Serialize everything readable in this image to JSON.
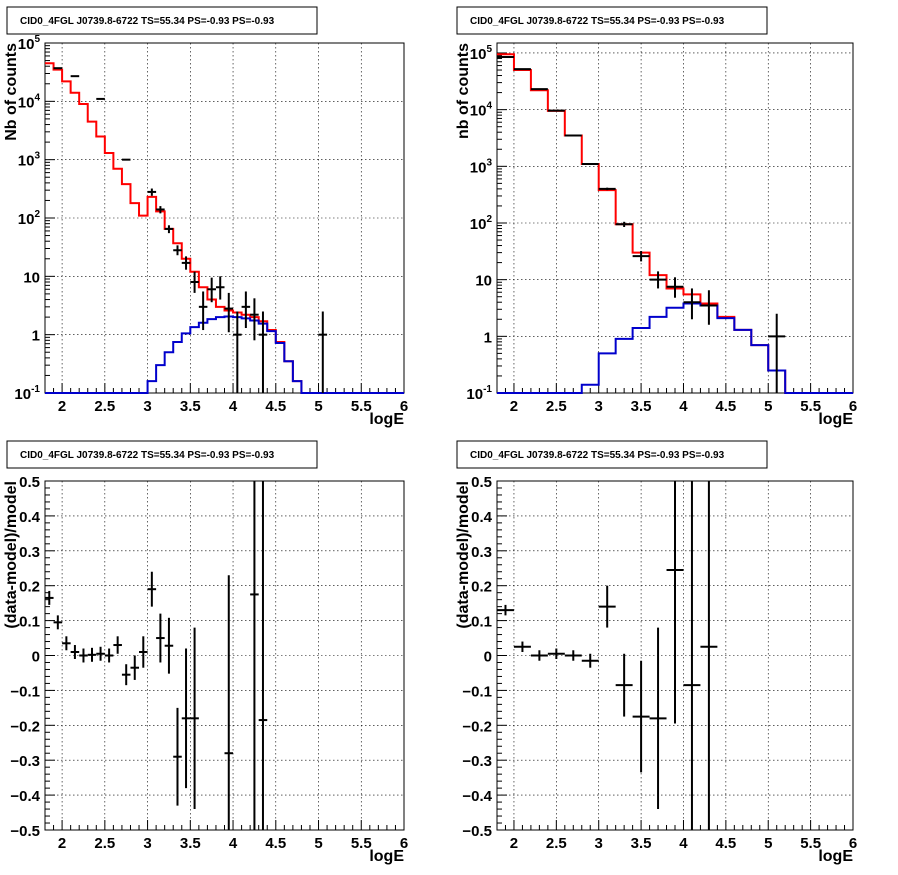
{
  "chart_data": [
    {
      "type": "line",
      "panel": "top-left",
      "title": "CID0_4FGL J0739.8-6722 TS=55.34 PS=-0.93 PS=-0.93",
      "xlabel": "logE",
      "ylabel": "Nb of counts",
      "xlim": [
        1.8,
        6.0
      ],
      "ylim": [
        0.1,
        100000
      ],
      "yscale": "log",
      "grid": true,
      "x_ticks": [
        "2",
        "2.5",
        "3",
        "3.5",
        "4",
        "4.5",
        "5",
        "5.5",
        "6"
      ],
      "y_ticks": [
        {
          "value": 0.1,
          "base": "10",
          "exp": "-1"
        },
        {
          "value": 1,
          "label": "1"
        },
        {
          "value": 10,
          "label": "10"
        },
        {
          "value": 100,
          "base": "10",
          "exp": "2"
        },
        {
          "value": 1000,
          "base": "10",
          "exp": "3"
        },
        {
          "value": 10000,
          "base": "10",
          "exp": "4"
        },
        {
          "value": 100000,
          "base": "10",
          "exp": "5"
        }
      ],
      "bin_edges": [
        1.8,
        1.9,
        2.0,
        2.1,
        2.2,
        2.3,
        2.4,
        2.5,
        2.6,
        2.7,
        2.8,
        2.9,
        3.0,
        3.1,
        3.2,
        3.3,
        3.4,
        3.5,
        3.6,
        3.7,
        3.8,
        3.9,
        4.0,
        4.1,
        4.2,
        4.3,
        4.4,
        4.5,
        4.6,
        4.7,
        4.8,
        4.9,
        5.0,
        5.1,
        5.2,
        5.3,
        5.4,
        5.5,
        5.6,
        5.7,
        5.8,
        5.9,
        6.0
      ],
      "series": [
        {
          "kind": "histogram",
          "color": "#ff0000",
          "values": [
            45000,
            35000,
            22000,
            14000,
            9000,
            4500,
            2500,
            1300,
            700,
            380,
            180,
            110,
            230,
            130,
            65,
            37,
            20,
            12,
            6.5,
            4.0,
            3.0,
            2.6,
            2.4,
            2.2,
            2.0,
            1.7,
            1.2,
            0.75,
            0.35,
            0.16,
            0.1,
            0.1,
            0.1,
            0.1,
            0.1,
            0.1,
            0.1,
            0.1,
            0.1,
            0.1,
            0.1,
            0.1
          ]
        },
        {
          "kind": "histogram",
          "color": "#0000cc",
          "values": [
            0.1,
            0.1,
            0.1,
            0.1,
            0.1,
            0.1,
            0.1,
            0.1,
            0.1,
            0.1,
            0.1,
            0.1,
            0.16,
            0.3,
            0.5,
            0.75,
            1.05,
            1.35,
            1.6,
            1.85,
            2.0,
            2.05,
            2.0,
            1.9,
            1.75,
            1.55,
            1.15,
            0.72,
            0.35,
            0.16,
            0.1,
            0.1,
            0.1,
            0.1,
            0.1,
            0.1,
            0.1,
            0.1,
            0.1,
            0.1,
            0.1,
            0.1
          ]
        },
        {
          "kind": "points",
          "color": "#000000",
          "x": [
            1.95,
            2.15,
            2.45,
            2.75,
            3.05,
            3.15,
            3.25,
            3.35,
            3.45,
            3.55,
            3.65,
            3.75,
            3.85,
            3.95,
            4.05,
            4.15,
            4.25,
            4.35,
            5.05
          ],
          "y": [
            37000,
            27000,
            11000,
            1000,
            280,
            140,
            65,
            28,
            17,
            8,
            3,
            6,
            6.5,
            2.8,
            1,
            3,
            2.2,
            1,
            1
          ],
          "yerr_low": [
            0,
            0,
            0,
            0,
            40,
            20,
            10,
            5,
            4,
            2.8,
            1.8,
            2.4,
            2.5,
            1.7,
            0.9,
            1.7,
            1.4,
            0.9,
            0.9
          ],
          "yerr_high": [
            0,
            0,
            0,
            0,
            40,
            20,
            10,
            6,
            5,
            4,
            2.5,
            3.5,
            3.5,
            2.4,
            1.5,
            2.5,
            2,
            1.5,
            1.5
          ]
        }
      ]
    },
    {
      "type": "line",
      "panel": "top-right",
      "title": "CID0_4FGL J0739.8-6722 TS=55.34 PS=-0.93 PS=-0.93",
      "xlabel": "logE",
      "ylabel": "nb of counts",
      "xlim": [
        1.8,
        6.0
      ],
      "ylim": [
        0.1,
        150000
      ],
      "yscale": "log",
      "grid": true,
      "x_ticks": [
        "2",
        "2.5",
        "3",
        "3.5",
        "4",
        "4.5",
        "5",
        "5.5",
        "6"
      ],
      "y_ticks": [
        {
          "value": 0.1,
          "base": "10",
          "exp": "-1"
        },
        {
          "value": 1,
          "label": "1"
        },
        {
          "value": 10,
          "label": "10"
        },
        {
          "value": 100,
          "base": "10",
          "exp": "2"
        },
        {
          "value": 1000,
          "base": "10",
          "exp": "3"
        },
        {
          "value": 10000,
          "base": "10",
          "exp": "4"
        },
        {
          "value": 100000,
          "base": "10",
          "exp": "5"
        }
      ],
      "bin_edges": [
        1.8,
        2.0,
        2.2,
        2.4,
        2.6,
        2.8,
        3.0,
        3.2,
        3.4,
        3.6,
        3.8,
        4.0,
        4.2,
        4.4,
        4.6,
        4.8,
        5.0,
        5.2,
        5.4,
        5.6,
        5.8,
        6.0
      ],
      "series": [
        {
          "kind": "histogram",
          "color": "#ff0000",
          "values": [
            95000,
            50000,
            22000,
            9500,
            3500,
            1100,
            380,
            95,
            30,
            12,
            7,
            5.5,
            3.8,
            2.2,
            1.3,
            0.7,
            0.25,
            0.1,
            0.1,
            0.1,
            0.1
          ]
        },
        {
          "kind": "histogram",
          "color": "#0000cc",
          "values": [
            0.1,
            0.1,
            0.1,
            0.1,
            0.1,
            0.14,
            0.5,
            0.9,
            1.4,
            2.2,
            3.2,
            3.8,
            3.5,
            2.1,
            1.3,
            0.7,
            0.25,
            0.1,
            0.1,
            0.1,
            0.1
          ]
        },
        {
          "kind": "points",
          "color": "#000000",
          "x": [
            1.9,
            2.1,
            2.3,
            2.5,
            2.7,
            2.9,
            3.1,
            3.3,
            3.5,
            3.7,
            3.9,
            4.1,
            4.3,
            5.1
          ],
          "y": [
            85000,
            52000,
            23000,
            9600,
            3500,
            1100,
            400,
            95,
            26,
            10,
            7.5,
            4,
            3.5,
            1
          ],
          "yerr_low": [
            0,
            0,
            0,
            0,
            0,
            30,
            20,
            10,
            5,
            3,
            2.7,
            2,
            1.9,
            0.9
          ],
          "yerr_high": [
            0,
            0,
            0,
            0,
            0,
            30,
            20,
            10,
            6,
            4,
            3.5,
            3,
            3,
            1.5
          ]
        }
      ]
    },
    {
      "type": "scatter",
      "panel": "bottom-left",
      "title": "CID0_4FGL J0739.8-6722 TS=55.34 PS=-0.93 PS=-0.93",
      "xlabel": "logE",
      "ylabel": "(data-model)/model",
      "xlim": [
        1.8,
        6.0
      ],
      "ylim": [
        -0.5,
        0.5
      ],
      "grid": true,
      "x_ticks": [
        "2",
        "2.5",
        "3",
        "3.5",
        "4",
        "4.5",
        "5",
        "5.5",
        "6"
      ],
      "y_ticks": [
        "−0.5",
        "−0.4",
        "−0.3",
        "−0.2",
        "−0.1",
        "0",
        "0.1",
        "0.2",
        "0.3",
        "0.4",
        "0.5"
      ],
      "bin_width": 0.1,
      "series": [
        {
          "kind": "points",
          "color": "#000000",
          "x": [
            1.85,
            1.95,
            2.05,
            2.15,
            2.25,
            2.35,
            2.45,
            2.55,
            2.65,
            2.75,
            2.85,
            2.95,
            3.05,
            3.15,
            3.25,
            3.35,
            3.45,
            3.55,
            3.95,
            4.25,
            4.35
          ],
          "y": [
            0.165,
            0.095,
            0.035,
            0.01,
            0.0,
            0.002,
            0.005,
            0.0,
            0.03,
            -0.055,
            -0.035,
            0.01,
            0.19,
            0.05,
            0.028,
            -0.29,
            -0.18,
            -0.18,
            -0.28,
            0.175,
            -0.185
          ],
          "yerr": [
            0.02,
            0.02,
            0.02,
            0.02,
            0.02,
            0.02,
            0.02,
            0.02,
            0.025,
            0.03,
            0.035,
            0.045,
            0.05,
            0.07,
            0.08,
            0.14,
            0.2,
            0.26,
            0.51,
            0.8,
            0.8
          ]
        }
      ]
    },
    {
      "type": "scatter",
      "panel": "bottom-right",
      "title": "CID0_4FGL J0739.8-6722 TS=55.34 PS=-0.93 PS=-0.93",
      "xlabel": "logE",
      "ylabel": "(data-model)/model",
      "xlim": [
        1.8,
        6.0
      ],
      "ylim": [
        -0.5,
        0.5
      ],
      "grid": true,
      "x_ticks": [
        "2",
        "2.5",
        "3",
        "3.5",
        "4",
        "4.5",
        "5",
        "5.5",
        "6"
      ],
      "y_ticks": [
        "−0.5",
        "−0.4",
        "−0.3",
        "−0.2",
        "−0.1",
        "0",
        "0.1",
        "0.2",
        "0.3",
        "0.4",
        "0.5"
      ],
      "bin_width": 0.2,
      "series": [
        {
          "kind": "points",
          "color": "#000000",
          "x": [
            1.9,
            2.1,
            2.3,
            2.5,
            2.7,
            2.9,
            3.1,
            3.3,
            3.5,
            3.7,
            3.9,
            4.1,
            4.3
          ],
          "y": [
            0.13,
            0.025,
            0.0,
            0.005,
            0.0,
            -0.015,
            0.14,
            -0.085,
            -0.175,
            -0.18,
            0.245,
            -0.085,
            0.025
          ],
          "yerr": [
            0.015,
            0.015,
            0.015,
            0.015,
            0.015,
            0.02,
            0.06,
            0.09,
            0.16,
            0.26,
            0.44,
            0.6,
            0.6
          ]
        }
      ]
    }
  ]
}
